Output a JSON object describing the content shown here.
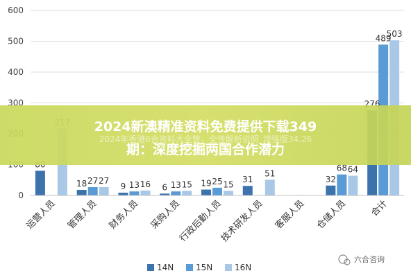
{
  "chart_data": {
    "type": "bar",
    "categories": [
      "运营人员",
      "管理人员",
      "财务人员",
      "采购人员",
      "行政后勤人员",
      "技术研发人员",
      "客服人员",
      "仓储人员",
      "合计"
    ],
    "series": [
      {
        "name": "14N",
        "color": "#3d73ad",
        "values": [
          80,
          18,
          9,
          6,
          19,
          31,
          null,
          32,
          276
        ]
      },
      {
        "name": "15N",
        "color": "#5a9bd5",
        "values": [
          null,
          27,
          13,
          13,
          25,
          null,
          null,
          68,
          489
        ]
      },
      {
        "name": "16N",
        "color": "#a9c8e8",
        "values": [
          217,
          27,
          16,
          15,
          15,
          51,
          null,
          64,
          503
        ]
      }
    ],
    "ylim": [
      0,
      600
    ],
    "yticks": [
      0,
      100,
      200,
      300,
      400,
      500,
      600
    ],
    "grid": true,
    "legend_position": "bottom"
  },
  "banner": {
    "line1": "2024新澳精准资料免费提供下载349",
    "line2": "期：深度挖掘两国合作潜力",
    "subtitle": "2024年香港6合资料大全管，全性解析说明_增强版34.26"
  },
  "watermark": {
    "text": "六合咨询"
  }
}
